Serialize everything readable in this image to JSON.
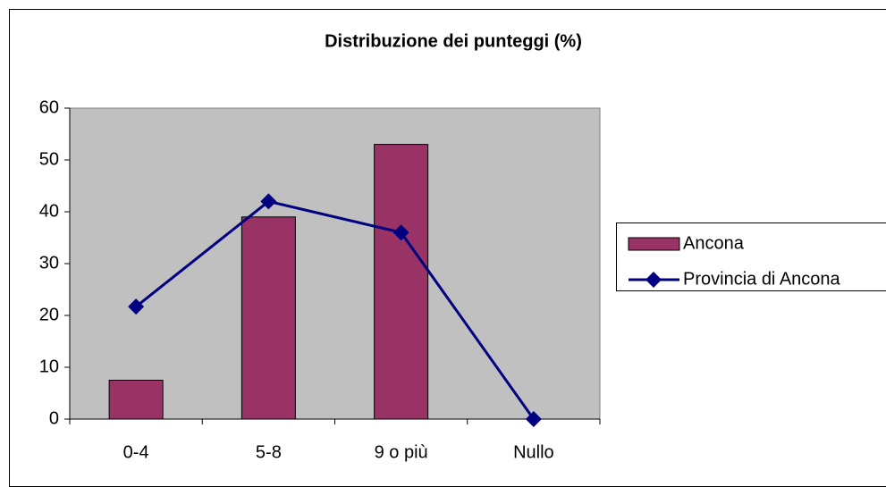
{
  "chart_data": {
    "type": "bar",
    "title": "Distribuzione dei punteggi (%)",
    "categories": [
      "0-4",
      "5-8",
      "9 o più",
      "Nullo"
    ],
    "series": [
      {
        "name": "Ancona",
        "type": "bar",
        "color": "#993366",
        "values": [
          7.5,
          39,
          53,
          0
        ]
      },
      {
        "name": "Provincia di Ancona",
        "type": "line",
        "color": "#000080",
        "values": [
          21.7,
          42,
          36,
          0
        ]
      }
    ],
    "ylim": [
      0,
      60
    ],
    "yticks": [
      0,
      10,
      20,
      30,
      40,
      50,
      60
    ],
    "legend": "right"
  }
}
